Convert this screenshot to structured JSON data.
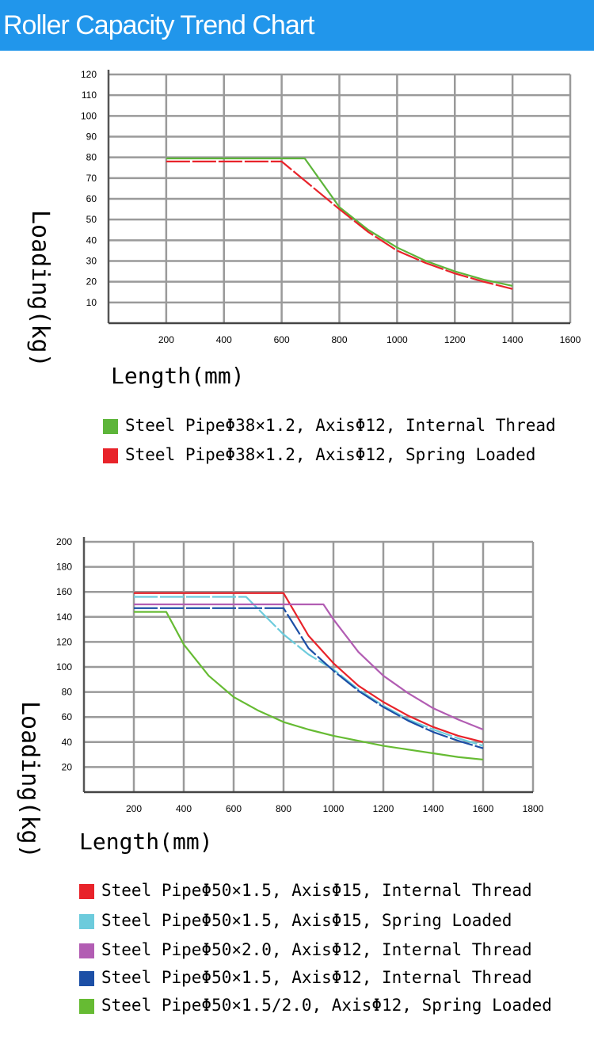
{
  "header": {
    "title": "Roller Capacity Trend Chart",
    "background": "#2196eb"
  },
  "chart_data": [
    {
      "type": "line",
      "xlabel": "Length(mm)",
      "ylabel": "Loading(kg)",
      "xlim": [
        0,
        1600
      ],
      "ylim": [
        0,
        120
      ],
      "xticks": [
        200,
        400,
        600,
        800,
        1000,
        1200,
        1400,
        1600
      ],
      "yticks": [
        10,
        20,
        30,
        40,
        50,
        60,
        70,
        80,
        90,
        100,
        110,
        120
      ],
      "grid": true,
      "legend_placement": "bottom",
      "series": [
        {
          "name": "Steel PipeΦ38×1.2, AxisΦ12, Internal Thread",
          "color": "#5db53a",
          "dashed": false,
          "x": [
            200,
            680,
            800,
            900,
            1000,
            1100,
            1200,
            1300,
            1400
          ],
          "y": [
            79.5,
            79.5,
            56,
            45,
            36.5,
            30,
            25,
            21,
            18
          ]
        },
        {
          "name": "Steel PipeΦ38×1.2, AxisΦ12, Spring Loaded",
          "color": "#e8232a",
          "dashed": true,
          "x": [
            200,
            600,
            800,
            900,
            1000,
            1100,
            1200,
            1300,
            1400
          ],
          "y": [
            78,
            78,
            55,
            44,
            35,
            29,
            24,
            20,
            16.5
          ]
        }
      ]
    },
    {
      "type": "line",
      "xlabel": "Length(mm)",
      "ylabel": "Loading(kg)",
      "xlim": [
        0,
        1800
      ],
      "ylim": [
        0,
        200
      ],
      "xticks": [
        200,
        400,
        600,
        800,
        1000,
        1200,
        1400,
        1600,
        1800
      ],
      "yticks": [
        20,
        40,
        60,
        80,
        100,
        120,
        140,
        160,
        180,
        200
      ],
      "grid": true,
      "legend_placement": "bottom",
      "series": [
        {
          "name": "Steel PipeΦ50×1.5, AxisΦ15, Internal Thread",
          "color": "#e8232a",
          "dashed": false,
          "x": [
            200,
            800,
            900,
            1000,
            1100,
            1200,
            1300,
            1400,
            1500,
            1600
          ],
          "y": [
            159,
            159,
            125,
            103,
            85,
            72,
            61,
            52,
            45,
            40
          ]
        },
        {
          "name": "Steel PipeΦ50×1.5, AxisΦ15, Spring Loaded",
          "color": "#6ccbdc",
          "dashed": true,
          "x": [
            200,
            650,
            800,
            900,
            1000,
            1100,
            1200,
            1300,
            1400,
            1500,
            1600
          ],
          "y": [
            156,
            156,
            126,
            110,
            98,
            82,
            69,
            58,
            50,
            43,
            37
          ]
        },
        {
          "name": "Steel PipeΦ50×2.0, AxisΦ12, Internal Thread",
          "color": "#b25db3",
          "dashed": false,
          "x": [
            200,
            960,
            1000,
            1100,
            1200,
            1300,
            1400,
            1500,
            1600
          ],
          "y": [
            150,
            150,
            138,
            112,
            93,
            79,
            67,
            58,
            50
          ]
        },
        {
          "name": "Steel PipeΦ50×1.5, AxisΦ12, Internal Thread",
          "color": "#1c4fa6",
          "dashed": true,
          "x": [
            200,
            800,
            900,
            1000,
            1100,
            1200,
            1300,
            1400,
            1500,
            1600
          ],
          "y": [
            147,
            147,
            115,
            97,
            81,
            68,
            57,
            48,
            41,
            35
          ]
        },
        {
          "name": "Steel PipeΦ50×1.5/2.0, AxisΦ12, Spring Loaded",
          "color": "#66bb33",
          "dashed": false,
          "x": [
            200,
            330,
            400,
            500,
            600,
            700,
            800,
            900,
            1000,
            1100,
            1200,
            1300,
            1400,
            1500,
            1600
          ],
          "y": [
            144,
            144,
            118,
            93,
            76,
            65,
            56,
            50,
            45,
            41,
            37,
            34,
            31,
            28,
            26
          ]
        }
      ]
    }
  ]
}
